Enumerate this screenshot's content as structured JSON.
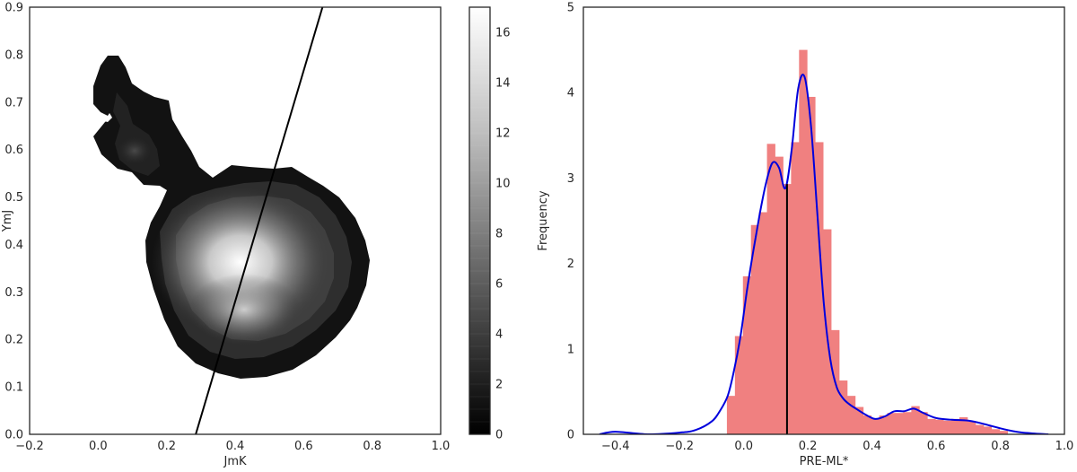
{
  "chart_data": [
    {
      "type": "contour",
      "xlabel": "JmK",
      "ylabel": "YmJ",
      "xlim": [
        -0.2,
        1.0
      ],
      "ylim": [
        0.0,
        0.9
      ],
      "xticks": [
        "−0.2",
        "0.0",
        "0.2",
        "0.4",
        "0.6",
        "0.8",
        "1.0"
      ],
      "yticks": [
        "0.0",
        "0.1",
        "0.2",
        "0.3",
        "0.4",
        "0.5",
        "0.6",
        "0.7",
        "0.8",
        "0.9"
      ],
      "grid": false,
      "density_peaks": [
        {
          "x": 0.38,
          "y": 0.37,
          "value": 17
        },
        {
          "x": 0.4,
          "y": 0.26,
          "value": 12
        },
        {
          "x": 0.08,
          "y": 0.62,
          "value": 2
        }
      ],
      "line": {
        "x": [
          0.285,
          0.655
        ],
        "y": [
          0.0,
          0.9
        ]
      },
      "colorbar": {
        "range": [
          0,
          17
        ],
        "ticks": [
          "0",
          "2",
          "4",
          "6",
          "8",
          "10",
          "12",
          "14",
          "16"
        ],
        "colormap": "greys_reversed"
      }
    },
    {
      "type": "bar",
      "xlabel": "PRE-ML*",
      "ylabel": "Frequency",
      "xlim": [
        -0.5,
        1.0
      ],
      "ylim": [
        0,
        5
      ],
      "xticks": [
        "−0.4",
        "−0.2",
        "0.0",
        "0.2",
        "0.4",
        "0.6",
        "0.8",
        "1.0"
      ],
      "yticks": [
        "0",
        "1",
        "2",
        "3",
        "4",
        "5"
      ],
      "grid": false,
      "bin_width": 0.025,
      "bins": [
        {
          "x": -0.04,
          "value": 0.45
        },
        {
          "x": -0.015,
          "value": 1.15
        },
        {
          "x": 0.01,
          "value": 1.85
        },
        {
          "x": 0.035,
          "value": 2.45
        },
        {
          "x": 0.06,
          "value": 2.6
        },
        {
          "x": 0.085,
          "value": 3.4
        },
        {
          "x": 0.11,
          "value": 3.25
        },
        {
          "x": 0.135,
          "value": 2.93
        },
        {
          "x": 0.16,
          "value": 3.42
        },
        {
          "x": 0.185,
          "value": 4.5
        },
        {
          "x": 0.21,
          "value": 3.95
        },
        {
          "x": 0.235,
          "value": 3.42
        },
        {
          "x": 0.26,
          "value": 2.4
        },
        {
          "x": 0.285,
          "value": 1.22
        },
        {
          "x": 0.31,
          "value": 0.63
        },
        {
          "x": 0.335,
          "value": 0.45
        },
        {
          "x": 0.36,
          "value": 0.32
        },
        {
          "x": 0.385,
          "value": 0.22
        },
        {
          "x": 0.41,
          "value": 0.18
        },
        {
          "x": 0.435,
          "value": 0.22
        },
        {
          "x": 0.46,
          "value": 0.25
        },
        {
          "x": 0.485,
          "value": 0.25
        },
        {
          "x": 0.51,
          "value": 0.26
        },
        {
          "x": 0.535,
          "value": 0.33
        },
        {
          "x": 0.56,
          "value": 0.26
        },
        {
          "x": 0.585,
          "value": 0.18
        },
        {
          "x": 0.61,
          "value": 0.17
        },
        {
          "x": 0.635,
          "value": 0.16
        },
        {
          "x": 0.66,
          "value": 0.18
        },
        {
          "x": 0.685,
          "value": 0.2
        },
        {
          "x": 0.71,
          "value": 0.15
        },
        {
          "x": 0.735,
          "value": 0.11
        },
        {
          "x": 0.76,
          "value": 0.09
        },
        {
          "x": 0.785,
          "value": 0.06
        },
        {
          "x": 0.81,
          "value": 0.04
        }
      ],
      "kde": {
        "x": [
          -0.45,
          -0.4,
          -0.3,
          -0.2,
          -0.15,
          -0.1,
          -0.075,
          -0.05,
          -0.03,
          -0.01,
          0.01,
          0.03,
          0.05,
          0.07,
          0.09,
          0.11,
          0.13,
          0.15,
          0.17,
          0.19,
          0.21,
          0.23,
          0.25,
          0.27,
          0.29,
          0.31,
          0.33,
          0.35,
          0.38,
          0.41,
          0.44,
          0.47,
          0.5,
          0.53,
          0.56,
          0.6,
          0.65,
          0.7,
          0.75,
          0.8,
          0.85,
          0.9,
          0.95
        ],
        "y": [
          0.0,
          0.03,
          0.0,
          0.02,
          0.05,
          0.15,
          0.27,
          0.45,
          0.75,
          1.15,
          1.68,
          2.15,
          2.58,
          2.95,
          3.18,
          3.12,
          2.88,
          3.35,
          4.05,
          4.18,
          3.6,
          2.55,
          1.52,
          0.88,
          0.55,
          0.42,
          0.35,
          0.3,
          0.23,
          0.18,
          0.21,
          0.27,
          0.27,
          0.3,
          0.25,
          0.19,
          0.17,
          0.16,
          0.12,
          0.07,
          0.03,
          0.01,
          0.0
        ]
      },
      "vline": {
        "x": 0.135,
        "y": [
          0,
          2.93
        ]
      },
      "colors": {
        "bars": "#f08080",
        "kde": "#0000dd",
        "vline": "#000000"
      }
    }
  ]
}
